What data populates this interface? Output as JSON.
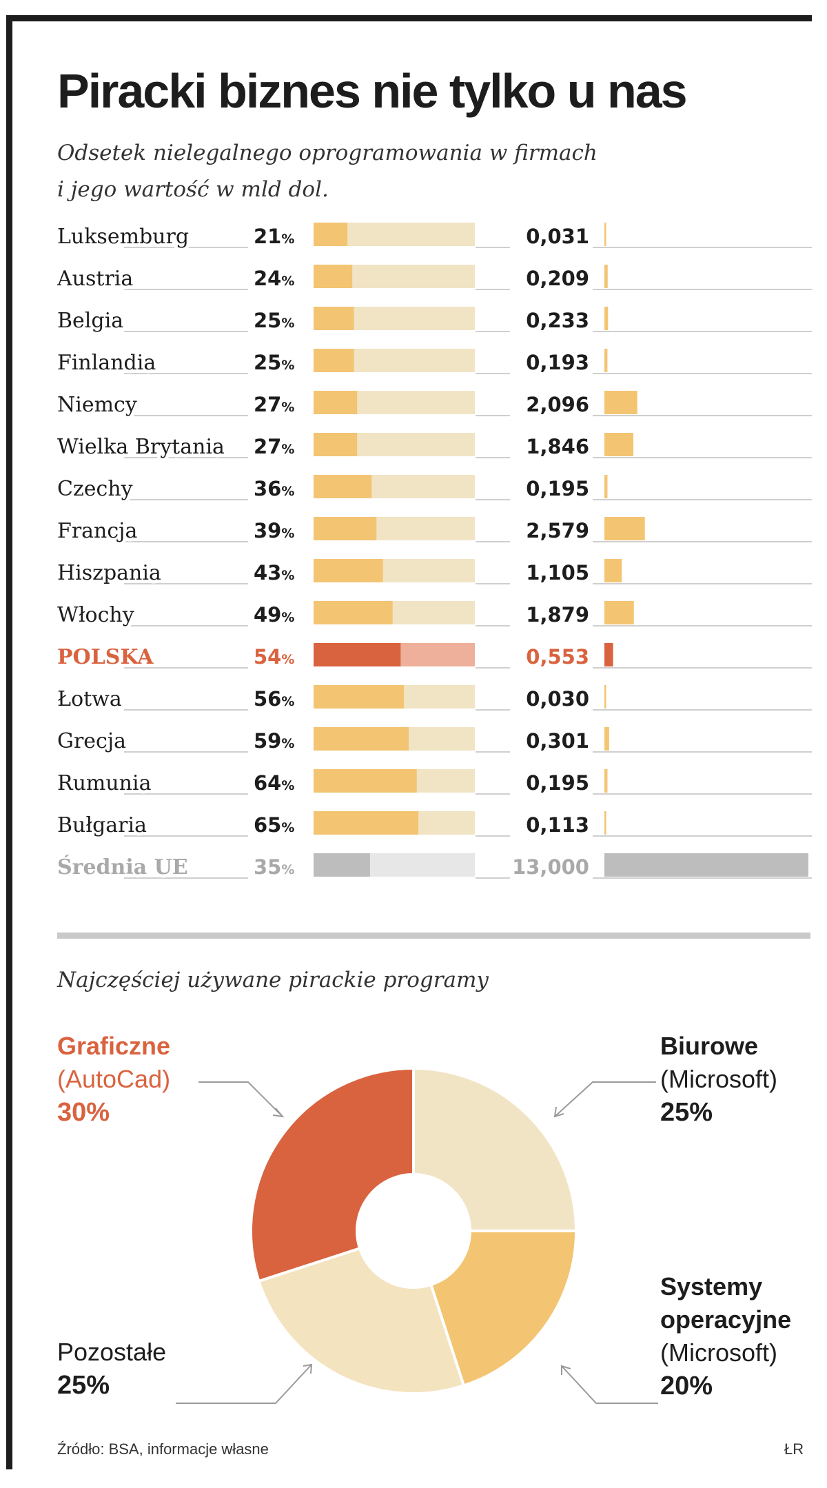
{
  "title": "Piracki biznes nie tylko u nas",
  "subtitle_line1": "Odsetek nielegalnego oprogramowania w firmach",
  "subtitle_line2": "i jego wartość w mld dol.",
  "colors": {
    "bar": "#f3c472",
    "bar_track": "#f1e4c5",
    "highlight": "#d9633f",
    "highlight_track": "#eeb09b",
    "average": "#bdbdbd",
    "average_track": "#e7e7e7",
    "leader": "#cfcfcf",
    "text": "#1d1d1d"
  },
  "chart_data": [
    {
      "type": "bar",
      "title": "Odsetek nielegalnego oprogramowania w firmach i jego wartość w mld dol.",
      "categories": [
        "Luksemburg",
        "Austria",
        "Belgia",
        "Finlandia",
        "Niemcy",
        "Wielka Brytania",
        "Czechy",
        "Francja",
        "Hiszpania",
        "Włochy",
        "POLSKA",
        "Łotwa",
        "Grecja",
        "Rumunia",
        "Bułgaria",
        "Średnia UE"
      ],
      "highlight": "POLSKA",
      "average_category": "Średnia UE",
      "series": [
        {
          "values": [
            21,
            24,
            25,
            25,
            27,
            27,
            36,
            39,
            43,
            49,
            54,
            56,
            59,
            64,
            65,
            35
          ],
          "labels": [
            "21",
            "24",
            "25",
            "25",
            "27",
            "27",
            "36",
            "39",
            "43",
            "49",
            "54",
            "56",
            "59",
            "64",
            "65",
            "35"
          ],
          "unit": "%",
          "ylim": [
            0,
            100
          ]
        },
        {
          "values": [
            0.031,
            0.209,
            0.233,
            0.193,
            2.096,
            1.846,
            0.195,
            2.579,
            1.105,
            1.879,
            0.553,
            0.03,
            0.301,
            0.195,
            0.113,
            13.0
          ],
          "labels": [
            "0,031",
            "0,209",
            "0,233",
            "0,193",
            "2,096",
            "1,846",
            "0,195",
            "2,579",
            "1,105",
            "1,879",
            "0,553",
            "0,030",
            "0,301",
            "0,195",
            "0,113",
            "13,000"
          ]
        }
      ]
    },
    {
      "type": "pie",
      "title": "Najczęściej używane pirackie programy",
      "slices": [
        {
          "name": "Biurowe",
          "sub": "(Microsoft)",
          "value": 25,
          "label": "25%",
          "color": "#f1e4c5"
        },
        {
          "name": "Systemy operacyjne",
          "sub": "(Microsoft)",
          "value": 20,
          "label": "20%",
          "color": "#f3c472"
        },
        {
          "name": "Pozostałe",
          "sub": "",
          "value": 25,
          "label": "25%",
          "color": "#f4e3bf"
        },
        {
          "name": "Graficzne",
          "sub": "(AutoCad)",
          "value": 30,
          "label": "30%",
          "color": "#d9633f"
        }
      ]
    }
  ],
  "pie_labels": {
    "graficzne": {
      "name": "Graficzne",
      "sub": "(AutoCad)",
      "pct": "30%"
    },
    "biurowe": {
      "name": "Biurowe",
      "sub": "(Microsoft)",
      "pct": "25%"
    },
    "systemy": {
      "name1": "Systemy",
      "name2": "operacyjne",
      "sub": "(Microsoft)",
      "pct": "20%"
    },
    "pozostale": {
      "name": "Pozostałe",
      "pct": "25%"
    }
  },
  "source": "Źródło: BSA, informacje własne",
  "author": "ŁR"
}
